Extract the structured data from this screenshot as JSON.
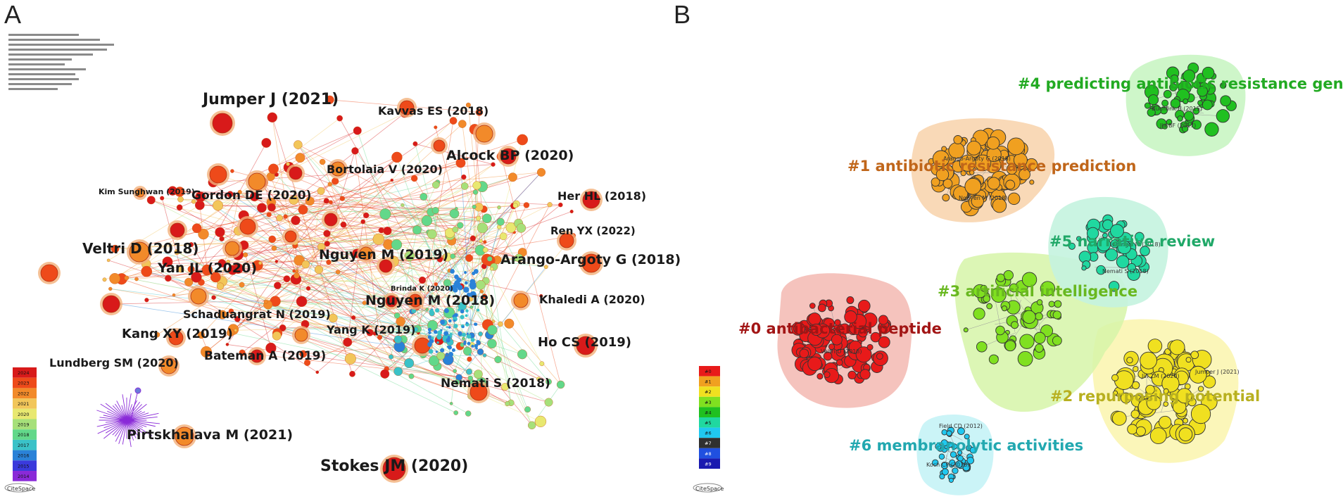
{
  "panel_a": {
    "letter": "A",
    "node_labels": [
      "Jumper J (2021)",
      "Kavvas ES (2018)",
      "Alcock BP (2020)",
      "Bortolaia V (2020)",
      "Kim Sunghwan (2019)",
      "Gordon DE (2020)",
      "Her HL (2018)",
      "Ren YX (2022)",
      "Veltri D (2018)",
      "Nguyen M (2019)",
      "Arango-Argoty G (2018)",
      "Yan JL (2020)",
      "Brinda K (2020)",
      "Schaduangrat N (2019)",
      "Nguyen M (2018)",
      "Khaledi A (2020)",
      "Kang XY (2019)",
      "Yang K (2019)",
      "Ho CS (2019)",
      "Bateman A (2019)",
      "Lundberg SM (2020)",
      "Nemati S (2018)",
      "Pirtskhalava M (2021)",
      "Stokes JM (2020)"
    ],
    "year_legend": [
      "2024",
      "2023",
      "2022",
      "2021",
      "2020",
      "2019",
      "2018",
      "2017",
      "2016",
      "2015",
      "2014"
    ],
    "logo_text": "CiteSpace"
  },
  "panel_b": {
    "letter": "B",
    "clusters": [
      {
        "label": "#0 antibacterial peptide",
        "color": "#a21515"
      },
      {
        "label": "#1 antibiotic resistance prediction",
        "color": "#c0661a"
      },
      {
        "label": "#2 repurposing potential",
        "color": "#b8b020"
      },
      {
        "label": "#3 artificial intelligence",
        "color": "#69b820"
      },
      {
        "label": "#4 predicting antibiotic resistance gene",
        "color": "#22aa22"
      },
      {
        "label": "#5 narrative review",
        "color": "#20a868"
      },
      {
        "label": "#6 membranolytic activities",
        "color": "#22a8b0"
      }
    ],
    "cluster_legend": [
      "#0",
      "#1",
      "#2",
      "#3",
      "#4",
      "#5",
      "#6",
      "#7",
      "#8",
      "#9"
    ],
    "small_labels": [
      "Buchfink B (2015)",
      "Jia BF (2017)",
      "Arango-Argoty G (2018)",
      "Nguyen M (2018)",
      "Veltri D (2018)",
      "Jumper J (2021)",
      "Jin ZM (2020)",
      "Field CD (2012)",
      "Koch CP (2018)",
      "Nemati S (2018)",
      "Chingol M (2018)"
    ],
    "logo_text": "CiteSpace"
  },
  "colors": {
    "year_scale": [
      "#d81a1a",
      "#ee4a1a",
      "#f28a2a",
      "#f2c65a",
      "#e8e870",
      "#a6e07a",
      "#62d88a",
      "#3ac2c8",
      "#2a82d8",
      "#3a3adc",
      "#8a2ad8"
    ],
    "cluster_scale": [
      "#e81a1a",
      "#f0a020",
      "#f0e020",
      "#80e020",
      "#20c020",
      "#20d8a0",
      "#20c8f0",
      "#303030",
      "#2050e0",
      "#1a1ab0"
    ]
  }
}
